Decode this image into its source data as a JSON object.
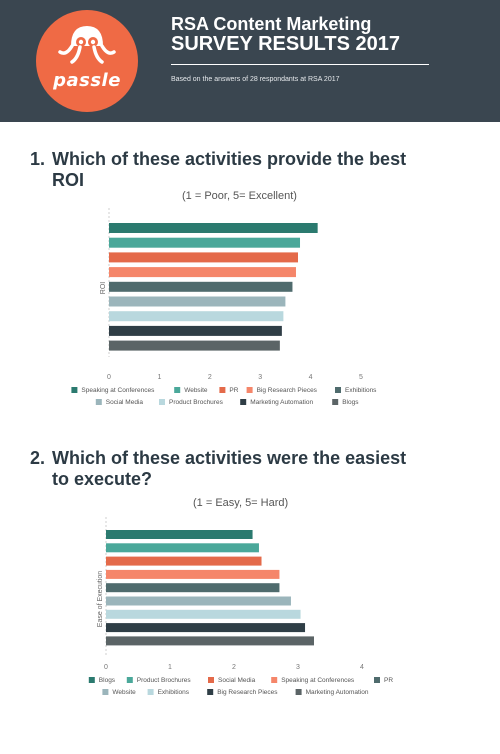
{
  "header": {
    "logo_text": "passle",
    "title_line1": "RSA Content Marketing",
    "title_line2": "SURVEY RESULTS 2017",
    "subtitle": "Based on the answers of 28 respondants at RSA 2017"
  },
  "questions": [
    {
      "number": "1.",
      "text": "Which of these activities provide the best ROI",
      "scale_note": "(1 = Poor, 5= Excellent)"
    },
    {
      "number": "2.",
      "text": "Which of these activities were the easiest to execute?",
      "scale_note": "(1 = Easy, 5= Hard)"
    }
  ],
  "chart_data": [
    {
      "type": "bar",
      "orientation": "horizontal",
      "ylabel": "ROI",
      "xlim": [
        0,
        5
      ],
      "ticks": [
        0,
        1,
        2,
        3,
        4,
        5
      ],
      "legend_position": "bottom",
      "series": [
        {
          "name": "Speaking at Conferences",
          "value": 4.14,
          "color": "#2b7a6f"
        },
        {
          "name": "Website",
          "value": 3.79,
          "color": "#4aa89a"
        },
        {
          "name": "PR",
          "value": 3.75,
          "color": "#e46a4a"
        },
        {
          "name": "Big Research Pieces",
          "value": 3.71,
          "color": "#f5866a"
        },
        {
          "name": "Exhibitions",
          "value": 3.64,
          "color": "#4f6b6d"
        },
        {
          "name": "Social Media",
          "value": 3.5,
          "color": "#9bb5bb"
        },
        {
          "name": "Product Brochures",
          "value": 3.46,
          "color": "#b9d8de"
        },
        {
          "name": "Marketing Automation",
          "value": 3.43,
          "color": "#2f3e46"
        },
        {
          "name": "Blogs",
          "value": 3.39,
          "color": "#5b6466"
        }
      ]
    },
    {
      "type": "bar",
      "orientation": "horizontal",
      "ylabel": "Ease of Execution",
      "xlim": [
        0,
        4
      ],
      "ticks": [
        0,
        1,
        2,
        3,
        4
      ],
      "legend_position": "bottom",
      "series": [
        {
          "name": "Blogs",
          "value": 2.29,
          "color": "#2b7a6f"
        },
        {
          "name": "Product Brochures",
          "value": 2.39,
          "color": "#4aa89a"
        },
        {
          "name": "Social Media",
          "value": 2.43,
          "color": "#e46a4a"
        },
        {
          "name": "Speaking at Conferences",
          "value": 2.71,
          "color": "#f5866a"
        },
        {
          "name": "PR",
          "value": 2.71,
          "color": "#4f6b6d"
        },
        {
          "name": "Website",
          "value": 2.89,
          "color": "#9bb5bb"
        },
        {
          "name": "Exhibitions",
          "value": 3.04,
          "color": "#b9d8de"
        },
        {
          "name": "Big Research Pieces",
          "value": 3.11,
          "color": "#2f3e46"
        },
        {
          "name": "Marketing Automation",
          "value": 3.25,
          "color": "#5b6466"
        }
      ]
    }
  ]
}
